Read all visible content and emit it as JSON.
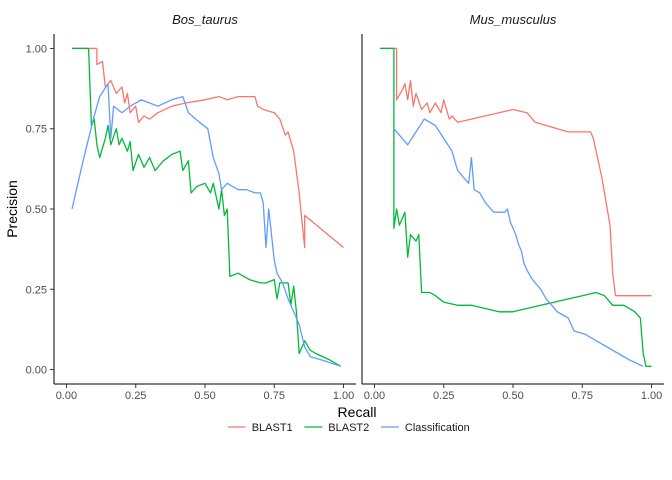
{
  "chart_data": {
    "type": "line",
    "xlabel": "Recall",
    "ylabel": "Precision",
    "xlim": [
      0,
      1
    ],
    "ylim": [
      0,
      1
    ],
    "xticks": [
      "0.00",
      "0.25",
      "0.50",
      "0.75",
      "1.00"
    ],
    "yticks": [
      "0.00",
      "0.25",
      "0.50",
      "0.75",
      "1.00"
    ],
    "grid": false,
    "legend_position": "bottom",
    "legend": [
      {
        "name": "BLAST1",
        "color": "#F8766D"
      },
      {
        "name": "BLAST2",
        "color": "#00BA38"
      },
      {
        "name": "Classification",
        "color": "#619CFF"
      }
    ],
    "panels": [
      {
        "title": "Bos_taurus",
        "series": [
          {
            "name": "BLAST1",
            "color": "#F8766D",
            "points": [
              [
                0.02,
                1.0
              ],
              [
                0.11,
                1.0
              ],
              [
                0.11,
                0.95
              ],
              [
                0.13,
                0.96
              ],
              [
                0.14,
                0.88
              ],
              [
                0.16,
                0.9
              ],
              [
                0.18,
                0.86
              ],
              [
                0.2,
                0.88
              ],
              [
                0.21,
                0.83
              ],
              [
                0.22,
                0.86
              ],
              [
                0.23,
                0.8
              ],
              [
                0.25,
                0.82
              ],
              [
                0.26,
                0.77
              ],
              [
                0.28,
                0.79
              ],
              [
                0.3,
                0.78
              ],
              [
                0.33,
                0.8
              ],
              [
                0.38,
                0.82
              ],
              [
                0.43,
                0.83
              ],
              [
                0.5,
                0.84
              ],
              [
                0.55,
                0.85
              ],
              [
                0.58,
                0.84
              ],
              [
                0.62,
                0.85
              ],
              [
                0.68,
                0.85
              ],
              [
                0.69,
                0.82
              ],
              [
                0.71,
                0.81
              ],
              [
                0.75,
                0.8
              ],
              [
                0.77,
                0.78
              ],
              [
                0.79,
                0.73
              ],
              [
                0.8,
                0.74
              ],
              [
                0.82,
                0.68
              ],
              [
                0.84,
                0.55
              ],
              [
                0.85,
                0.46
              ],
              [
                0.86,
                0.38
              ],
              [
                0.86,
                0.48
              ],
              [
                1.0,
                0.38
              ]
            ]
          },
          {
            "name": "BLAST2",
            "color": "#00BA38",
            "points": [
              [
                0.02,
                1.0
              ],
              [
                0.08,
                1.0
              ],
              [
                0.09,
                0.76
              ],
              [
                0.1,
                0.78
              ],
              [
                0.11,
                0.7
              ],
              [
                0.12,
                0.66
              ],
              [
                0.14,
                0.72
              ],
              [
                0.15,
                0.76
              ],
              [
                0.16,
                0.7
              ],
              [
                0.18,
                0.75
              ],
              [
                0.19,
                0.7
              ],
              [
                0.2,
                0.72
              ],
              [
                0.22,
                0.68
              ],
              [
                0.23,
                0.71
              ],
              [
                0.24,
                0.62
              ],
              [
                0.26,
                0.67
              ],
              [
                0.28,
                0.63
              ],
              [
                0.3,
                0.66
              ],
              [
                0.32,
                0.62
              ],
              [
                0.35,
                0.65
              ],
              [
                0.38,
                0.67
              ],
              [
                0.41,
                0.68
              ],
              [
                0.42,
                0.62
              ],
              [
                0.44,
                0.65
              ],
              [
                0.45,
                0.55
              ],
              [
                0.47,
                0.57
              ],
              [
                0.5,
                0.58
              ],
              [
                0.52,
                0.55
              ],
              [
                0.53,
                0.58
              ],
              [
                0.55,
                0.5
              ],
              [
                0.56,
                0.56
              ],
              [
                0.57,
                0.48
              ],
              [
                0.58,
                0.5
              ],
              [
                0.59,
                0.29
              ],
              [
                0.62,
                0.3
              ],
              [
                0.66,
                0.28
              ],
              [
                0.7,
                0.27
              ],
              [
                0.72,
                0.27
              ],
              [
                0.75,
                0.28
              ],
              [
                0.76,
                0.22
              ],
              [
                0.77,
                0.27
              ],
              [
                0.8,
                0.27
              ],
              [
                0.81,
                0.2
              ],
              [
                0.82,
                0.26
              ],
              [
                0.83,
                0.18
              ],
              [
                0.84,
                0.05
              ],
              [
                0.86,
                0.09
              ],
              [
                0.88,
                0.06
              ],
              [
                0.9,
                0.05
              ],
              [
                0.95,
                0.03
              ],
              [
                0.99,
                0.01
              ]
            ]
          },
          {
            "name": "Classification",
            "color": "#619CFF",
            "points": [
              [
                0.02,
                0.5
              ],
              [
                0.06,
                0.65
              ],
              [
                0.1,
                0.79
              ],
              [
                0.12,
                0.85
              ],
              [
                0.15,
                0.89
              ],
              [
                0.16,
                0.72
              ],
              [
                0.17,
                0.82
              ],
              [
                0.2,
                0.8
              ],
              [
                0.23,
                0.82
              ],
              [
                0.27,
                0.84
              ],
              [
                0.3,
                0.83
              ],
              [
                0.33,
                0.82
              ],
              [
                0.38,
                0.84
              ],
              [
                0.42,
                0.85
              ],
              [
                0.44,
                0.8
              ],
              [
                0.48,
                0.77
              ],
              [
                0.51,
                0.75
              ],
              [
                0.53,
                0.66
              ],
              [
                0.55,
                0.61
              ],
              [
                0.56,
                0.56
              ],
              [
                0.58,
                0.58
              ],
              [
                0.62,
                0.56
              ],
              [
                0.65,
                0.56
              ],
              [
                0.68,
                0.55
              ],
              [
                0.7,
                0.55
              ],
              [
                0.71,
                0.52
              ],
              [
                0.72,
                0.38
              ],
              [
                0.73,
                0.5
              ],
              [
                0.74,
                0.42
              ],
              [
                0.75,
                0.34
              ],
              [
                0.76,
                0.3
              ],
              [
                0.78,
                0.27
              ],
              [
                0.8,
                0.22
              ],
              [
                0.82,
                0.18
              ],
              [
                0.84,
                0.14
              ],
              [
                0.86,
                0.07
              ],
              [
                0.88,
                0.04
              ],
              [
                0.92,
                0.03
              ],
              [
                0.99,
                0.01
              ]
            ]
          }
        ]
      },
      {
        "title": "Mus_musculus",
        "series": [
          {
            "name": "BLAST1",
            "color": "#F8766D",
            "points": [
              [
                0.02,
                1.0
              ],
              [
                0.08,
                1.0
              ],
              [
                0.08,
                0.84
              ],
              [
                0.1,
                0.87
              ],
              [
                0.11,
                0.89
              ],
              [
                0.12,
                0.84
              ],
              [
                0.13,
                0.9
              ],
              [
                0.14,
                0.82
              ],
              [
                0.15,
                0.86
              ],
              [
                0.17,
                0.81
              ],
              [
                0.19,
                0.83
              ],
              [
                0.2,
                0.8
              ],
              [
                0.22,
                0.83
              ],
              [
                0.24,
                0.8
              ],
              [
                0.25,
                0.84
              ],
              [
                0.27,
                0.78
              ],
              [
                0.28,
                0.79
              ],
              [
                0.3,
                0.77
              ],
              [
                0.35,
                0.78
              ],
              [
                0.4,
                0.79
              ],
              [
                0.45,
                0.8
              ],
              [
                0.5,
                0.81
              ],
              [
                0.55,
                0.8
              ],
              [
                0.58,
                0.77
              ],
              [
                0.62,
                0.76
              ],
              [
                0.66,
                0.75
              ],
              [
                0.7,
                0.74
              ],
              [
                0.75,
                0.74
              ],
              [
                0.78,
                0.74
              ],
              [
                0.79,
                0.72
              ],
              [
                0.82,
                0.6
              ],
              [
                0.85,
                0.45
              ],
              [
                0.86,
                0.3
              ],
              [
                0.87,
                0.23
              ],
              [
                1.0,
                0.23
              ]
            ]
          },
          {
            "name": "BLAST2",
            "color": "#00BA38",
            "points": [
              [
                0.02,
                1.0
              ],
              [
                0.07,
                1.0
              ],
              [
                0.07,
                0.44
              ],
              [
                0.08,
                0.5
              ],
              [
                0.09,
                0.45
              ],
              [
                0.1,
                0.47
              ],
              [
                0.11,
                0.49
              ],
              [
                0.12,
                0.35
              ],
              [
                0.13,
                0.42
              ],
              [
                0.15,
                0.4
              ],
              [
                0.16,
                0.42
              ],
              [
                0.17,
                0.24
              ],
              [
                0.2,
                0.24
              ],
              [
                0.22,
                0.23
              ],
              [
                0.25,
                0.21
              ],
              [
                0.3,
                0.2
              ],
              [
                0.35,
                0.2
              ],
              [
                0.4,
                0.19
              ],
              [
                0.45,
                0.18
              ],
              [
                0.5,
                0.18
              ],
              [
                0.55,
                0.19
              ],
              [
                0.6,
                0.2
              ],
              [
                0.65,
                0.21
              ],
              [
                0.7,
                0.22
              ],
              [
                0.75,
                0.23
              ],
              [
                0.8,
                0.24
              ],
              [
                0.83,
                0.23
              ],
              [
                0.86,
                0.2
              ],
              [
                0.9,
                0.2
              ],
              [
                0.94,
                0.18
              ],
              [
                0.96,
                0.16
              ],
              [
                0.97,
                0.05
              ],
              [
                0.98,
                0.01
              ],
              [
                1.0,
                0.01
              ]
            ]
          },
          {
            "name": "Classification",
            "color": "#619CFF",
            "points": [
              [
                0.07,
                0.75
              ],
              [
                0.1,
                0.72
              ],
              [
                0.12,
                0.7
              ],
              [
                0.15,
                0.74
              ],
              [
                0.18,
                0.78
              ],
              [
                0.22,
                0.76
              ],
              [
                0.25,
                0.72
              ],
              [
                0.28,
                0.68
              ],
              [
                0.3,
                0.62
              ],
              [
                0.32,
                0.6
              ],
              [
                0.34,
                0.58
              ],
              [
                0.35,
                0.66
              ],
              [
                0.36,
                0.56
              ],
              [
                0.38,
                0.55
              ],
              [
                0.4,
                0.52
              ],
              [
                0.43,
                0.49
              ],
              [
                0.47,
                0.49
              ],
              [
                0.48,
                0.5
              ],
              [
                0.49,
                0.46
              ],
              [
                0.51,
                0.42
              ],
              [
                0.52,
                0.39
              ],
              [
                0.53,
                0.37
              ],
              [
                0.54,
                0.33
              ],
              [
                0.55,
                0.31
              ],
              [
                0.57,
                0.28
              ],
              [
                0.6,
                0.25
              ],
              [
                0.62,
                0.22
              ],
              [
                0.64,
                0.2
              ],
              [
                0.66,
                0.18
              ],
              [
                0.68,
                0.17
              ],
              [
                0.7,
                0.16
              ],
              [
                0.72,
                0.12
              ],
              [
                0.76,
                0.11
              ],
              [
                0.8,
                0.09
              ],
              [
                0.84,
                0.07
              ],
              [
                0.88,
                0.05
              ],
              [
                0.92,
                0.03
              ],
              [
                0.97,
                0.01
              ]
            ]
          }
        ]
      }
    ]
  }
}
